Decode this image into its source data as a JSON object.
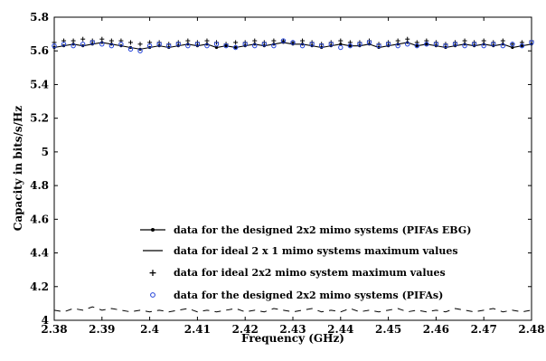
{
  "chart_data": {
    "type": "line",
    "xlabel": "Frequency (GHz)",
    "ylabel": "Capacity in bits/s/Hz",
    "xlim": [
      2.38,
      2.48
    ],
    "ylim": [
      4.0,
      5.8
    ],
    "xticks": [
      "2.38",
      "2.39",
      "2.4",
      "2.41",
      "2.42",
      "2.43",
      "2.44",
      "2.45",
      "2.46",
      "2.47",
      "2.48"
    ],
    "yticks": [
      "4",
      "4.2",
      "4.4",
      "4.6",
      "4.8",
      "5",
      "5.2",
      "5.4",
      "5.6",
      "5.8"
    ],
    "grid": false,
    "legend_position": "lower-right",
    "x": [
      2.38,
      2.382,
      2.384,
      2.386,
      2.388,
      2.39,
      2.392,
      2.394,
      2.396,
      2.398,
      2.4,
      2.402,
      2.404,
      2.406,
      2.408,
      2.41,
      2.412,
      2.414,
      2.416,
      2.418,
      2.42,
      2.422,
      2.424,
      2.426,
      2.428,
      2.43,
      2.432,
      2.434,
      2.436,
      2.438,
      2.44,
      2.442,
      2.444,
      2.446,
      2.448,
      2.45,
      2.452,
      2.454,
      2.456,
      2.458,
      2.46,
      2.462,
      2.464,
      2.466,
      2.468,
      2.47,
      2.472,
      2.474,
      2.476,
      2.478,
      2.48
    ],
    "series": [
      {
        "name": "data for the designed 2x2 mimo systems (PIFAs EBG)",
        "style": "line-dot",
        "color": "#000000",
        "values": [
          5.62,
          5.63,
          5.64,
          5.63,
          5.64,
          5.65,
          5.64,
          5.63,
          5.62,
          5.61,
          5.62,
          5.63,
          5.62,
          5.63,
          5.64,
          5.63,
          5.64,
          5.62,
          5.63,
          5.62,
          5.63,
          5.64,
          5.63,
          5.64,
          5.65,
          5.64,
          5.64,
          5.63,
          5.62,
          5.63,
          5.64,
          5.63,
          5.63,
          5.64,
          5.62,
          5.63,
          5.64,
          5.65,
          5.63,
          5.64,
          5.63,
          5.62,
          5.63,
          5.64,
          5.63,
          5.64,
          5.63,
          5.64,
          5.62,
          5.63,
          5.64
        ]
      },
      {
        "name": "data for ideal 2 x 1 mimo systems maximum values",
        "style": "dash",
        "color": "#000000",
        "values": [
          4.06,
          4.05,
          4.07,
          4.06,
          4.08,
          4.06,
          4.07,
          4.06,
          4.05,
          4.06,
          4.05,
          4.06,
          4.05,
          4.06,
          4.07,
          4.05,
          4.06,
          4.05,
          4.06,
          4.07,
          4.05,
          4.06,
          4.05,
          4.07,
          4.06,
          4.05,
          4.06,
          4.07,
          4.05,
          4.06,
          4.05,
          4.07,
          4.05,
          4.06,
          4.05,
          4.06,
          4.07,
          4.05,
          4.06,
          4.05,
          4.06,
          4.05,
          4.07,
          4.06,
          4.05,
          4.06,
          4.07,
          4.05,
          4.06,
          4.05,
          4.06
        ]
      },
      {
        "name": "data for ideal 2x2 mimo system maximum values",
        "style": "plus",
        "color": "#000000",
        "values": [
          5.65,
          5.66,
          5.66,
          5.67,
          5.66,
          5.67,
          5.66,
          5.66,
          5.65,
          5.64,
          5.65,
          5.65,
          5.64,
          5.65,
          5.66,
          5.65,
          5.66,
          5.65,
          5.64,
          5.65,
          5.65,
          5.66,
          5.65,
          5.66,
          5.66,
          5.65,
          5.66,
          5.65,
          5.64,
          5.65,
          5.66,
          5.65,
          5.65,
          5.66,
          5.64,
          5.65,
          5.66,
          5.67,
          5.65,
          5.66,
          5.65,
          5.64,
          5.65,
          5.66,
          5.65,
          5.66,
          5.65,
          5.66,
          5.64,
          5.65,
          5.66
        ]
      },
      {
        "name": "data for the designed 2x2 mimo systems (PIFAs)",
        "style": "circle",
        "color": "#1f3fd8",
        "values": [
          5.63,
          5.64,
          5.63,
          5.64,
          5.65,
          5.64,
          5.63,
          5.64,
          5.61,
          5.6,
          5.63,
          5.64,
          5.63,
          5.64,
          5.63,
          5.64,
          5.63,
          5.64,
          5.63,
          5.62,
          5.64,
          5.63,
          5.64,
          5.63,
          5.66,
          5.65,
          5.63,
          5.64,
          5.63,
          5.64,
          5.62,
          5.63,
          5.64,
          5.65,
          5.63,
          5.64,
          5.63,
          5.64,
          5.63,
          5.64,
          5.64,
          5.63,
          5.64,
          5.63,
          5.64,
          5.63,
          5.64,
          5.63,
          5.64,
          5.63,
          5.65
        ]
      }
    ]
  }
}
